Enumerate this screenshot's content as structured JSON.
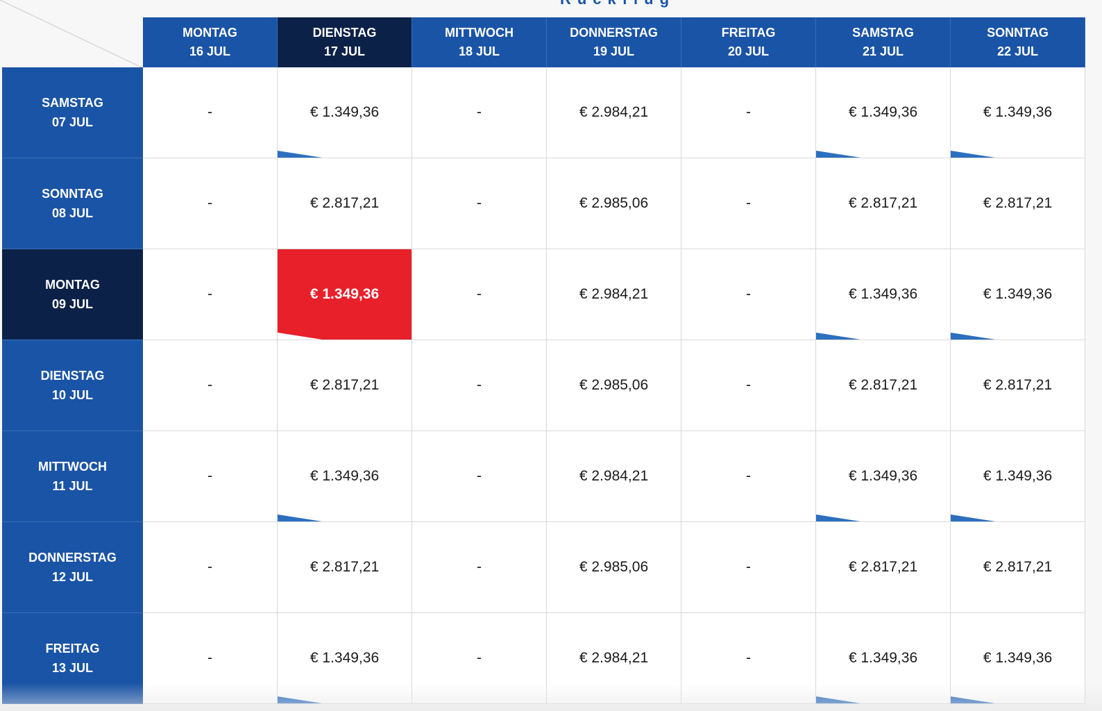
{
  "section_title": "Rückflug",
  "colors": {
    "header_blue": "#1a54a6",
    "header_active": "#0c2148",
    "selected_red": "#e8202a",
    "marker_blue": "#2c6fbf"
  },
  "columns": [
    {
      "day": "MONTAG",
      "date": "16 JUL"
    },
    {
      "day": "DIENSTAG",
      "date": "17 JUL",
      "active": true
    },
    {
      "day": "MITTWOCH",
      "date": "18 JUL"
    },
    {
      "day": "DONNERSTAG",
      "date": "19 JUL"
    },
    {
      "day": "FREITAG",
      "date": "20 JUL"
    },
    {
      "day": "SAMSTAG",
      "date": "21 JUL"
    },
    {
      "day": "SONNTAG",
      "date": "22 JUL"
    }
  ],
  "rows": [
    {
      "day": "SAMSTAG",
      "date": "07 JUL",
      "prices": [
        "-",
        "€ 1.349,36",
        "-",
        "€ 2.984,21",
        "-",
        "€ 1.349,36",
        "€ 1.349,36"
      ],
      "markers": [
        false,
        true,
        false,
        false,
        false,
        true,
        true
      ]
    },
    {
      "day": "SONNTAG",
      "date": "08 JUL",
      "prices": [
        "-",
        "€ 2.817,21",
        "-",
        "€ 2.985,06",
        "-",
        "€ 2.817,21",
        "€ 2.817,21"
      ],
      "markers": [
        false,
        false,
        false,
        false,
        false,
        false,
        false
      ]
    },
    {
      "day": "MONTAG",
      "date": "09 JUL",
      "active": true,
      "prices": [
        "-",
        "€ 1.349,36",
        "-",
        "€ 2.984,21",
        "-",
        "€ 1.349,36",
        "€ 1.349,36"
      ],
      "markers": [
        false,
        true,
        false,
        false,
        false,
        true,
        true
      ],
      "selected_col": 1
    },
    {
      "day": "DIENSTAG",
      "date": "10 JUL",
      "prices": [
        "-",
        "€ 2.817,21",
        "-",
        "€ 2.985,06",
        "-",
        "€ 2.817,21",
        "€ 2.817,21"
      ],
      "markers": [
        false,
        false,
        false,
        false,
        false,
        false,
        false
      ]
    },
    {
      "day": "MITTWOCH",
      "date": "11 JUL",
      "prices": [
        "-",
        "€ 1.349,36",
        "-",
        "€ 2.984,21",
        "-",
        "€ 1.349,36",
        "€ 1.349,36"
      ],
      "markers": [
        false,
        true,
        false,
        false,
        false,
        true,
        true
      ]
    },
    {
      "day": "DONNERSTAG",
      "date": "12 JUL",
      "prices": [
        "-",
        "€ 2.817,21",
        "-",
        "€ 2.985,06",
        "-",
        "€ 2.817,21",
        "€ 2.817,21"
      ],
      "markers": [
        false,
        false,
        false,
        false,
        false,
        false,
        false
      ]
    },
    {
      "day": "FREITAG",
      "date": "13 JUL",
      "prices": [
        "-",
        "€ 1.349,36",
        "-",
        "€ 2.984,21",
        "-",
        "€ 1.349,36",
        "€ 1.349,36"
      ],
      "markers": [
        false,
        true,
        false,
        false,
        false,
        true,
        true
      ]
    }
  ]
}
